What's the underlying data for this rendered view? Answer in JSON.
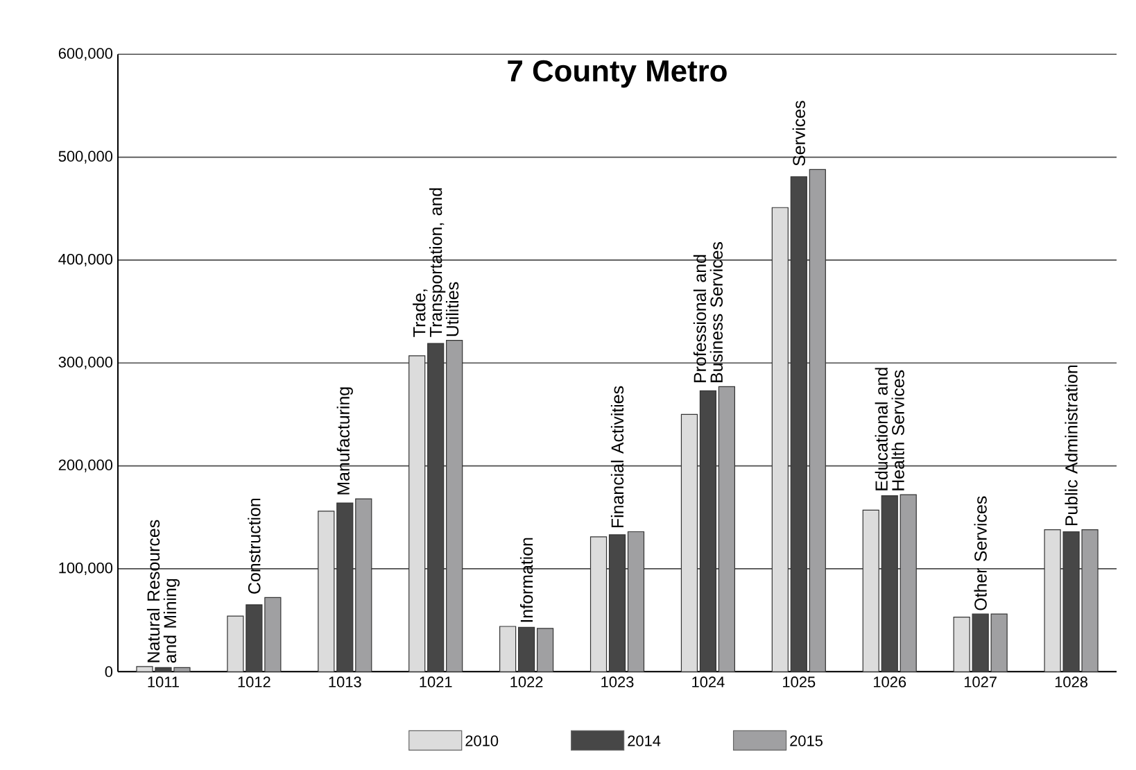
{
  "chart_data": {
    "type": "bar",
    "title": "7 County Metro",
    "categories": [
      "1011",
      "1012",
      "1013",
      "1021",
      "1022",
      "1023",
      "1024",
      "1025",
      "1026",
      "1027",
      "1028"
    ],
    "series": [
      {
        "name": "2010",
        "color": "#dcdcdc",
        "values": [
          5000,
          54000,
          156000,
          307000,
          44000,
          131000,
          250000,
          451000,
          157000,
          53000,
          138000
        ]
      },
      {
        "name": "2014",
        "color": "#474747",
        "values": [
          4000,
          65000,
          164000,
          319000,
          43000,
          133000,
          273000,
          481000,
          171000,
          56000,
          136000
        ]
      },
      {
        "name": "2015",
        "color": "#a0a0a2",
        "values": [
          4000,
          72000,
          168000,
          322000,
          42000,
          136000,
          277000,
          488000,
          172000,
          56000,
          138000
        ]
      }
    ],
    "ylim": [
      0,
      600000
    ],
    "yticks": [
      0,
      {
        "value": 100000,
        "label": "100,000"
      },
      {
        "value": 200000,
        "label": "200,000"
      },
      {
        "value": 300000,
        "label": "300,000"
      },
      {
        "value": 400000,
        "label": "400,000"
      },
      {
        "value": 500000,
        "label": "500,000"
      },
      {
        "value": 600000,
        "label": "600,000"
      }
    ],
    "grid": "y",
    "legend": "bottom",
    "annotations": [
      "Natural Resources and Mining",
      "Construction",
      "Manufacturing",
      "Trade, Transportation, and Utilities",
      "Information",
      "Financial Activities",
      "Professional and Business Services",
      "Services",
      "Educational and Health Services",
      "Other Services",
      "Public Administration"
    ]
  }
}
